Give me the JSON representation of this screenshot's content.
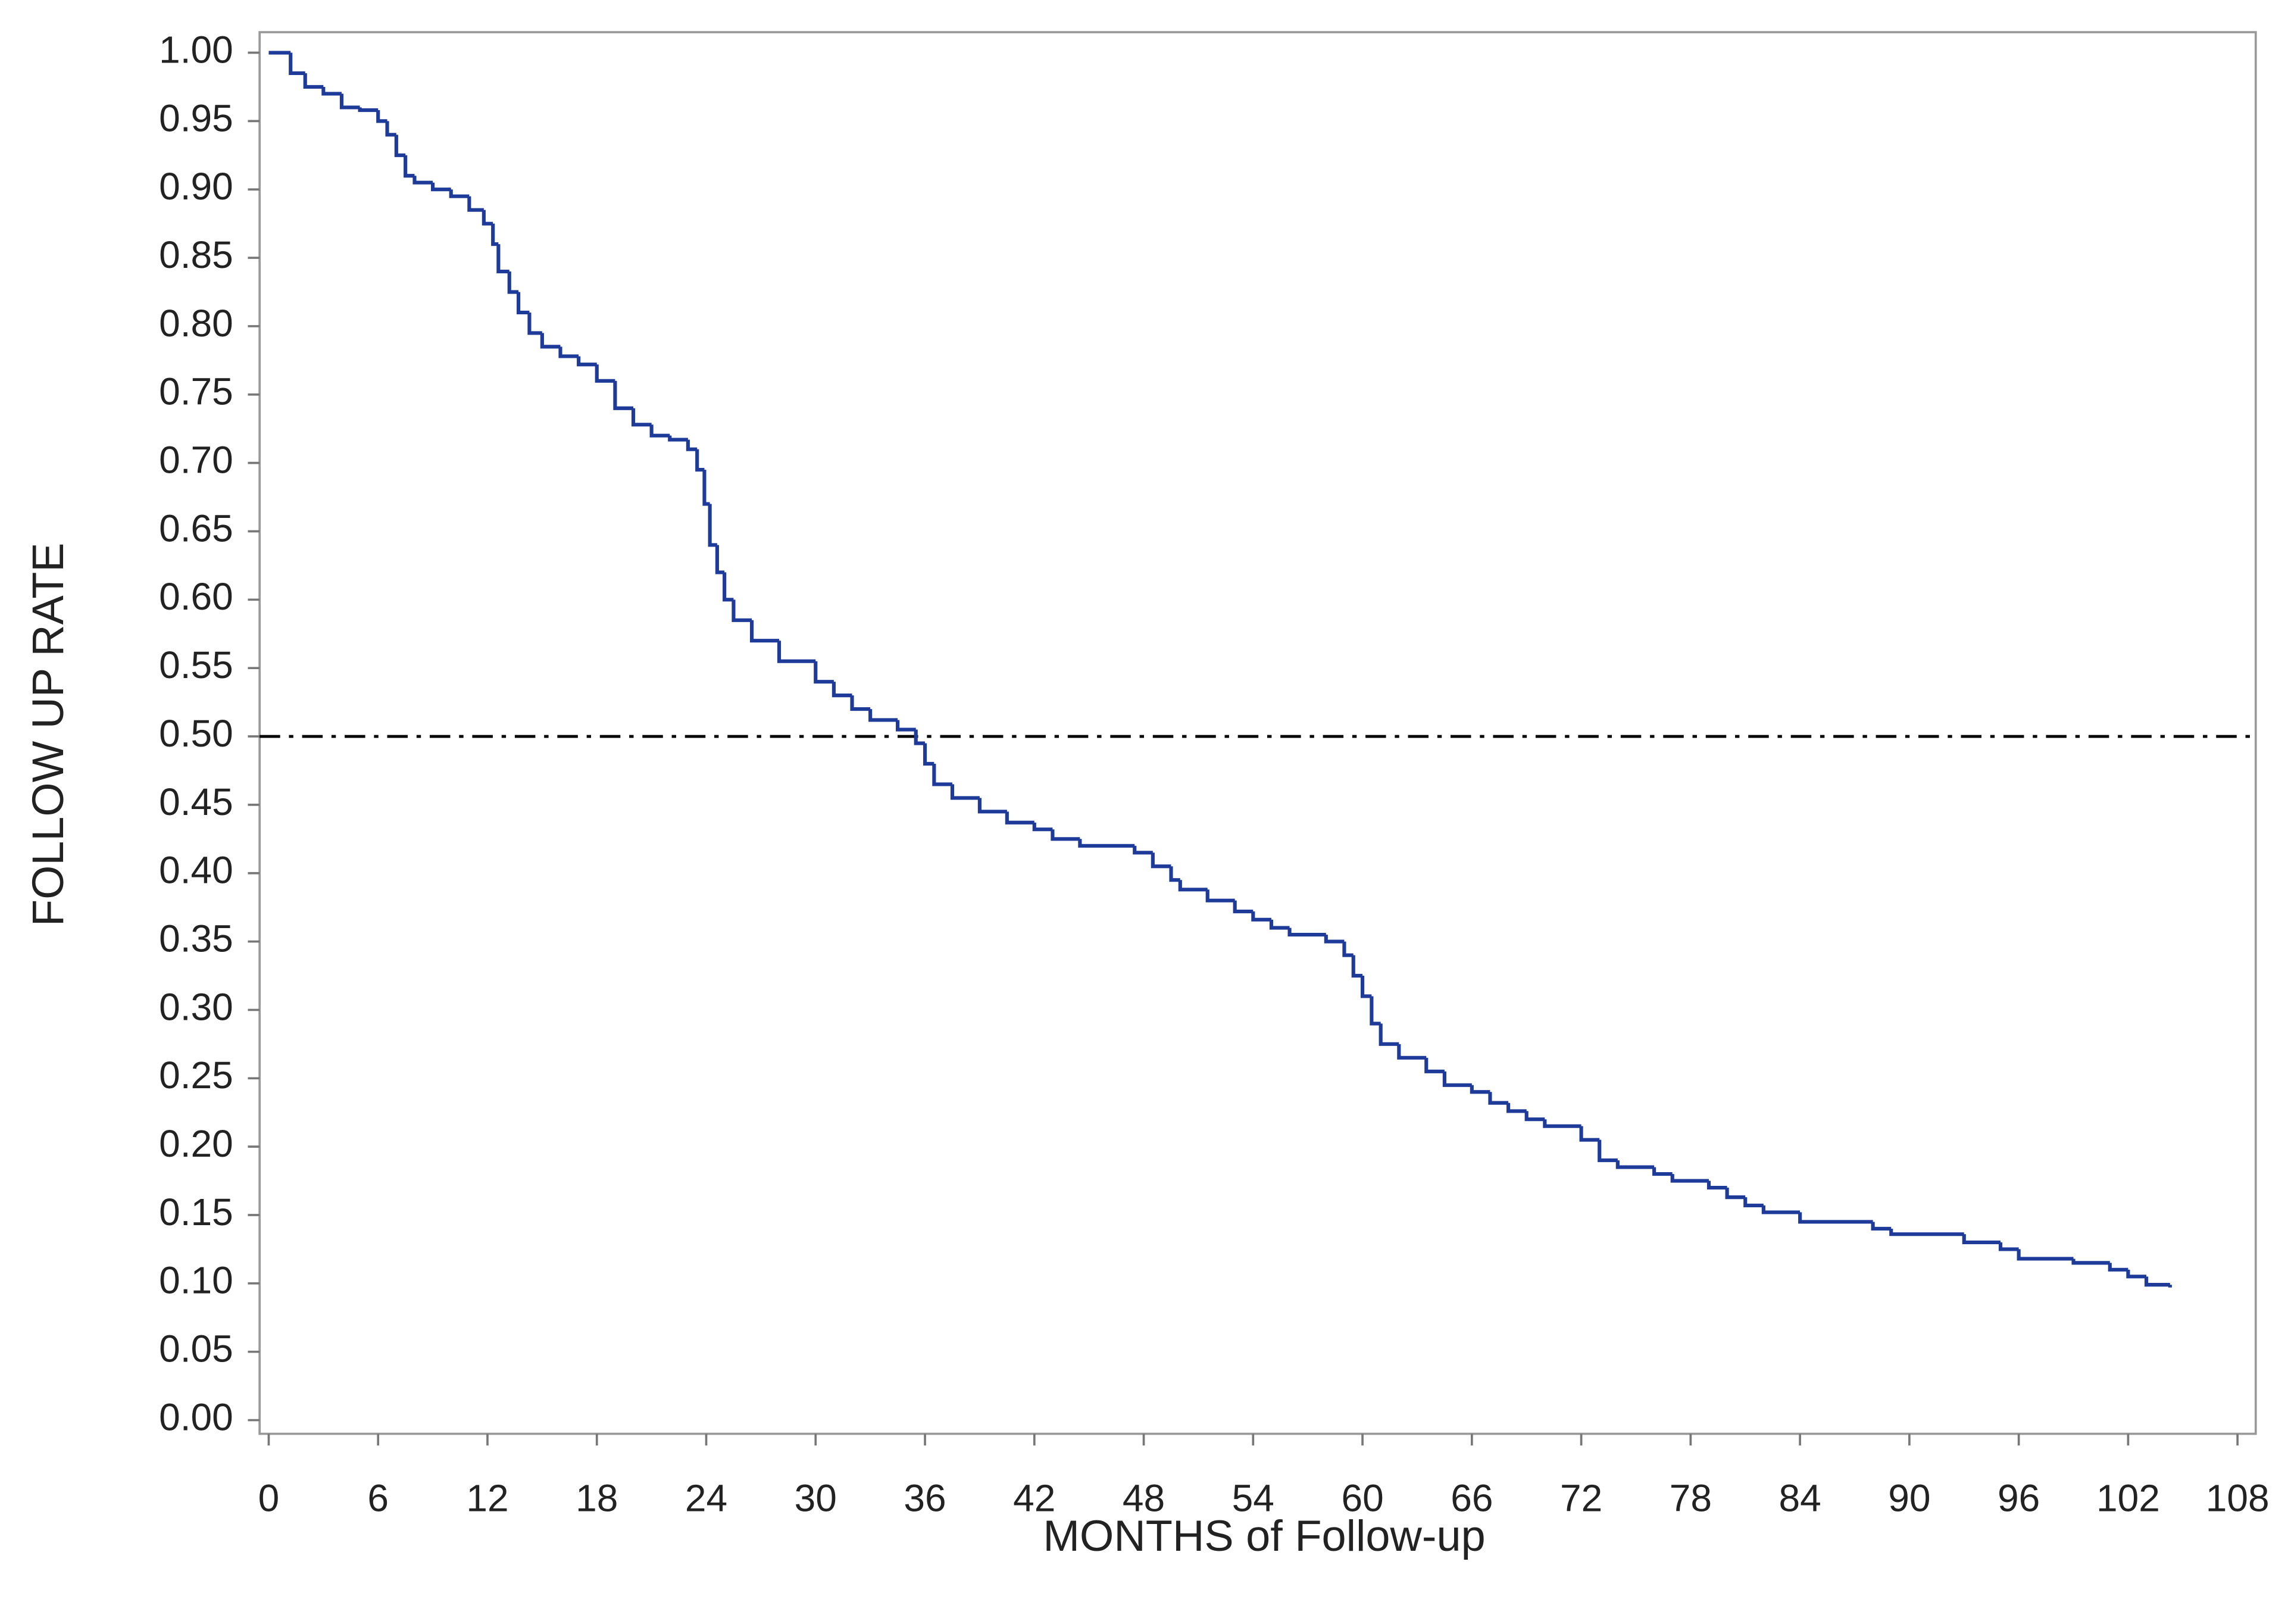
{
  "chart_data": {
    "type": "line",
    "step": "post",
    "x_label": "MONTHS of Follow-up",
    "y_label": "FOLLOW UP RATE",
    "xlim": [
      -0.5,
      109
    ],
    "ylim": [
      -0.01,
      1.015
    ],
    "xticks": [
      0,
      6,
      12,
      18,
      24,
      30,
      36,
      42,
      48,
      54,
      60,
      66,
      72,
      78,
      84,
      90,
      96,
      102,
      108
    ],
    "yticks": [
      {
        "value": 0,
        "label": "0.00"
      },
      {
        "value": 0.05,
        "label": "0.05"
      },
      {
        "value": 0.1,
        "label": "0.10"
      },
      {
        "value": 0.15,
        "label": "0.15"
      },
      {
        "value": 0.2,
        "label": "0.20"
      },
      {
        "value": 0.25,
        "label": "0.25"
      },
      {
        "value": 0.3,
        "label": "0.30"
      },
      {
        "value": 0.35,
        "label": "0.35"
      },
      {
        "value": 0.4,
        "label": "0.40"
      },
      {
        "value": 0.45,
        "label": "0.45"
      },
      {
        "value": 0.5,
        "label": "0.50"
      },
      {
        "value": 0.55,
        "label": "0.55"
      },
      {
        "value": 0.6,
        "label": "0.60"
      },
      {
        "value": 0.65,
        "label": "0.65"
      },
      {
        "value": 0.7,
        "label": "0.70"
      },
      {
        "value": 0.75,
        "label": "0.75"
      },
      {
        "value": 0.8,
        "label": "0.80"
      },
      {
        "value": 0.85,
        "label": "0.85"
      },
      {
        "value": 0.9,
        "label": "0.90"
      },
      {
        "value": 0.95,
        "label": "0.95"
      },
      {
        "value": 1,
        "label": "1.00"
      }
    ],
    "hline": 0.5,
    "hline_color": "#000000",
    "color": "#1f3b99",
    "x": [
      0,
      1.2,
      2,
      3,
      4,
      5,
      6,
      6.5,
      7,
      7.5,
      8,
      9,
      10,
      11,
      11.8,
      12.3,
      12.6,
      13.2,
      13.7,
      14.3,
      15,
      16,
      17,
      18,
      19,
      20,
      21,
      22,
      23,
      23.5,
      23.9,
      24.2,
      24.6,
      25,
      25.5,
      26.5,
      28,
      30,
      31,
      32,
      33,
      34.5,
      35.5,
      36,
      36.5,
      37.5,
      39,
      40.5,
      42,
      43,
      44.5,
      47.5,
      48.5,
      49.5,
      50,
      51.5,
      53,
      54,
      55,
      56,
      58,
      59,
      59.5,
      60,
      60.5,
      61,
      62,
      63.5,
      64.5,
      66,
      67,
      68,
      69,
      70,
      72,
      73,
      74,
      76,
      77,
      79,
      80,
      81,
      82,
      84,
      88,
      89,
      93,
      95,
      96,
      99,
      101,
      102,
      103,
      104.3
    ],
    "values": [
      1,
      0.985,
      0.975,
      0.97,
      0.96,
      0.958,
      0.95,
      0.94,
      0.925,
      0.91,
      0.905,
      0.9,
      0.895,
      0.885,
      0.875,
      0.86,
      0.84,
      0.825,
      0.81,
      0.795,
      0.785,
      0.778,
      0.772,
      0.76,
      0.74,
      0.728,
      0.72,
      0.717,
      0.71,
      0.695,
      0.67,
      0.64,
      0.62,
      0.6,
      0.585,
      0.57,
      0.555,
      0.54,
      0.53,
      0.52,
      0.512,
      0.505,
      0.495,
      0.48,
      0.465,
      0.455,
      0.445,
      0.437,
      0.432,
      0.425,
      0.42,
      0.415,
      0.405,
      0.395,
      0.388,
      0.38,
      0.372,
      0.366,
      0.36,
      0.355,
      0.35,
      0.34,
      0.325,
      0.31,
      0.29,
      0.275,
      0.265,
      0.255,
      0.245,
      0.24,
      0.232,
      0.226,
      0.22,
      0.215,
      0.205,
      0.19,
      0.185,
      0.18,
      0.175,
      0.17,
      0.163,
      0.157,
      0.152,
      0.145,
      0.14,
      0.136,
      0.13,
      0.125,
      0.118,
      0.115,
      0.11,
      0.105,
      0.099,
      0.097
    ]
  }
}
